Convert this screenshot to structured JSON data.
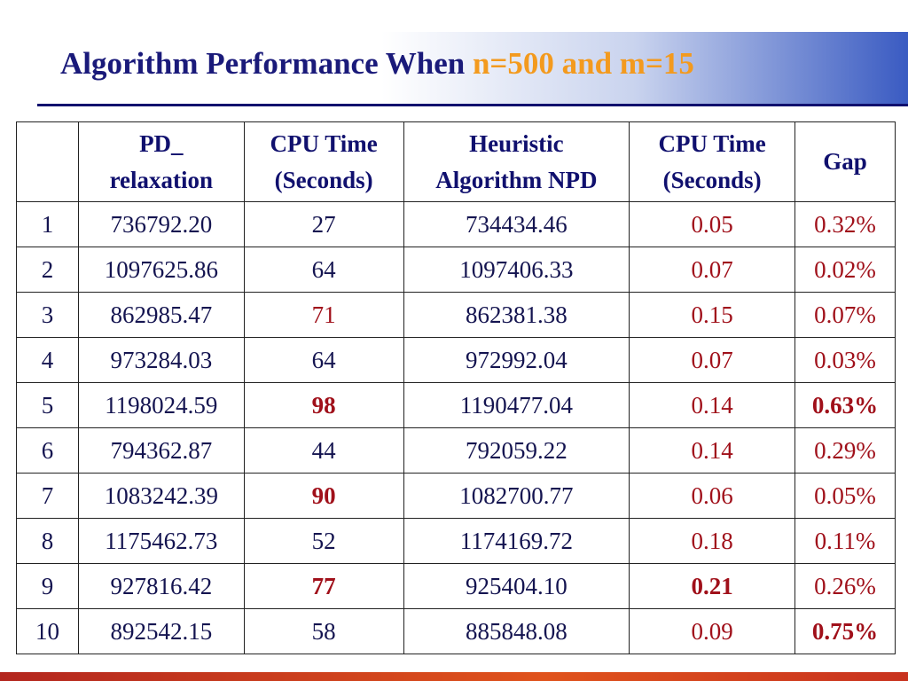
{
  "title": {
    "main": "Algorithm Performance When",
    "highlight": "n=500 and m=15"
  },
  "table": {
    "header": [
      "PD_\nrelaxation",
      "CPU Time\n(Seconds)",
      "Heuristic\nAlgorithm NPD",
      "CPU Time\n(Seconds)",
      "Gap"
    ],
    "rows": [
      [
        "1",
        "736792.20",
        "27",
        "734434.46",
        "0.05",
        "0.32%"
      ],
      [
        "2",
        "1097625.86",
        "64",
        "1097406.33",
        "0.07",
        "0.02%"
      ],
      [
        "3",
        "862985.47",
        "71",
        "862381.38",
        "0.15",
        "0.07%"
      ],
      [
        "4",
        "973284.03",
        "64",
        "972992.04",
        "0.07",
        "0.03%"
      ],
      [
        "5",
        "1198024.59",
        "98",
        "1190477.04",
        "0.14",
        "0.63%"
      ],
      [
        "6",
        "794362.87",
        "44",
        "792059.22",
        "0.14",
        "0.29%"
      ],
      [
        "7",
        "1083242.39",
        "90",
        "1082700.77",
        "0.06",
        "0.05%"
      ],
      [
        "8",
        "1175462.73",
        "52",
        "1174169.72",
        "0.18",
        "0.11%"
      ],
      [
        "9",
        "927816.42",
        "77",
        "925404.10",
        "0.21",
        "0.26%"
      ],
      [
        "10",
        "892542.15",
        "58",
        "885848.08",
        "0.09",
        "0.75%"
      ]
    ]
  }
}
